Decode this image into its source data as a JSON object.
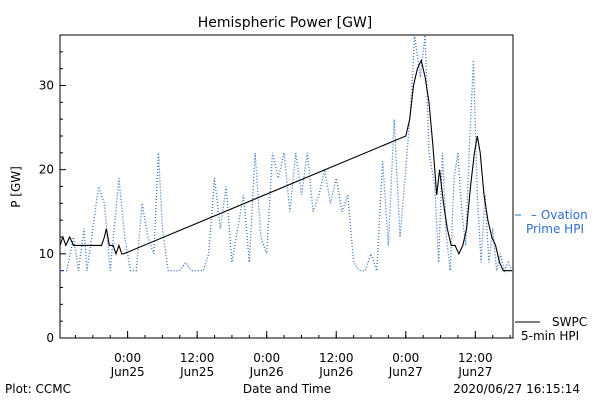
{
  "chart_data": {
    "type": "line",
    "title": "Hemispheric Power [GW]",
    "xlabel": "Date and Time",
    "ylabel": "P [GW]",
    "ylim": [
      0,
      36
    ],
    "xlim": [
      "2020-06-24T12:20",
      "2020-06-27T18:30"
    ],
    "yticks": [
      0,
      10,
      20,
      30
    ],
    "xticks": [
      {
        "time": "2020-06-25T00:00",
        "hour": "0:00",
        "day": "Jun25"
      },
      {
        "time": "2020-06-25T12:00",
        "hour": "12:00",
        "day": "Jun25"
      },
      {
        "time": "2020-06-26T00:00",
        "hour": "0:00",
        "day": "Jun26"
      },
      {
        "time": "2020-06-26T12:00",
        "hour": "12:00",
        "day": "Jun26"
      },
      {
        "time": "2020-06-27T00:00",
        "hour": "0:00",
        "day": "Jun27"
      },
      {
        "time": "2020-06-27T12:00",
        "hour": "12:00",
        "day": "Jun27"
      }
    ],
    "grid": false,
    "legend_position": "right",
    "series": [
      {
        "name": "SWPC 5-min HPI",
        "legend_lines": [
          "SWPC",
          "5-min HPI"
        ],
        "color": "#000000",
        "style": "solid",
        "points": [
          [
            "2020-06-24T12:20",
            11
          ],
          [
            "2020-06-24T12:50",
            12
          ],
          [
            "2020-06-24T13:20",
            11
          ],
          [
            "2020-06-24T14:00",
            12
          ],
          [
            "2020-06-24T14:40",
            11
          ],
          [
            "2020-06-24T15:30",
            11
          ],
          [
            "2020-06-24T16:30",
            11
          ],
          [
            "2020-06-24T17:30",
            11
          ],
          [
            "2020-06-24T18:30",
            11
          ],
          [
            "2020-06-24T19:30",
            11
          ],
          [
            "2020-06-24T20:00",
            12
          ],
          [
            "2020-06-24T20:20",
            13
          ],
          [
            "2020-06-24T20:50",
            11
          ],
          [
            "2020-06-24T21:30",
            11
          ],
          [
            "2020-06-24T22:00",
            10
          ],
          [
            "2020-06-24T22:30",
            11
          ],
          [
            "2020-06-24T23:00",
            10
          ],
          [
            "2020-06-24T23:20",
            10
          ],
          [
            "2020-06-27T00:00",
            24
          ],
          [
            "2020-06-27T00:40",
            26
          ],
          [
            "2020-06-27T01:20",
            30
          ],
          [
            "2020-06-27T02:00",
            32
          ],
          [
            "2020-06-27T02:40",
            33
          ],
          [
            "2020-06-27T03:20",
            31
          ],
          [
            "2020-06-27T04:00",
            28
          ],
          [
            "2020-06-27T04:40",
            23
          ],
          [
            "2020-06-27T05:20",
            17
          ],
          [
            "2020-06-27T05:50",
            20
          ],
          [
            "2020-06-27T06:30",
            16
          ],
          [
            "2020-06-27T07:10",
            13
          ],
          [
            "2020-06-27T07:50",
            11
          ],
          [
            "2020-06-27T08:30",
            11
          ],
          [
            "2020-06-27T09:10",
            10
          ],
          [
            "2020-06-27T09:50",
            11
          ],
          [
            "2020-06-27T10:30",
            13
          ],
          [
            "2020-06-27T11:10",
            18
          ],
          [
            "2020-06-27T11:50",
            22
          ],
          [
            "2020-06-27T12:20",
            24
          ],
          [
            "2020-06-27T12:50",
            22
          ],
          [
            "2020-06-27T13:30",
            17
          ],
          [
            "2020-06-27T14:10",
            14
          ],
          [
            "2020-06-27T14:50",
            12
          ],
          [
            "2020-06-27T15:30",
            11
          ],
          [
            "2020-06-27T16:10",
            9
          ],
          [
            "2020-06-27T16:50",
            8
          ],
          [
            "2020-06-27T17:30",
            8
          ],
          [
            "2020-06-27T18:20",
            8
          ]
        ]
      },
      {
        "name": "Ovation Prime HPI",
        "legend_lines": [
          "Ovation",
          "Prime HPI"
        ],
        "color": "#2f6fc9",
        "style": "dotted",
        "points": [
          [
            "2020-06-24T12:20",
            8
          ],
          [
            "2020-06-24T13:30",
            8
          ],
          [
            "2020-06-24T14:40",
            12
          ],
          [
            "2020-06-24T15:30",
            8
          ],
          [
            "2020-06-24T16:30",
            13
          ],
          [
            "2020-06-24T17:00",
            8
          ],
          [
            "2020-06-24T18:00",
            13
          ],
          [
            "2020-06-24T19:00",
            18
          ],
          [
            "2020-06-24T20:00",
            16
          ],
          [
            "2020-06-24T21:00",
            8
          ],
          [
            "2020-06-24T22:30",
            19
          ],
          [
            "2020-06-24T23:30",
            12
          ],
          [
            "2020-06-25T00:30",
            8
          ],
          [
            "2020-06-25T01:30",
            8
          ],
          [
            "2020-06-25T02:30",
            16
          ],
          [
            "2020-06-25T03:30",
            12
          ],
          [
            "2020-06-25T04:30",
            10
          ],
          [
            "2020-06-25T05:20",
            22
          ],
          [
            "2020-06-25T06:00",
            13
          ],
          [
            "2020-06-25T07:00",
            8
          ],
          [
            "2020-06-25T09:00",
            8
          ],
          [
            "2020-06-25T10:00",
            9
          ],
          [
            "2020-06-25T11:00",
            8
          ],
          [
            "2020-06-25T13:00",
            8
          ],
          [
            "2020-06-25T14:00",
            10
          ],
          [
            "2020-06-25T15:00",
            19
          ],
          [
            "2020-06-25T16:00",
            13
          ],
          [
            "2020-06-25T17:00",
            18
          ],
          [
            "2020-06-25T18:00",
            9
          ],
          [
            "2020-06-25T19:00",
            13
          ],
          [
            "2020-06-25T20:00",
            17
          ],
          [
            "2020-06-25T21:00",
            9
          ],
          [
            "2020-06-25T22:00",
            22
          ],
          [
            "2020-06-25T23:00",
            12
          ],
          [
            "2020-06-26T00:00",
            10
          ],
          [
            "2020-06-26T01:00",
            22
          ],
          [
            "2020-06-26T02:00",
            19
          ],
          [
            "2020-06-26T03:00",
            22
          ],
          [
            "2020-06-26T04:00",
            15
          ],
          [
            "2020-06-26T05:00",
            22
          ],
          [
            "2020-06-26T06:00",
            17
          ],
          [
            "2020-06-26T07:00",
            22
          ],
          [
            "2020-06-26T08:00",
            15
          ],
          [
            "2020-06-26T09:00",
            17
          ],
          [
            "2020-06-26T10:00",
            20
          ],
          [
            "2020-06-26T11:00",
            16
          ],
          [
            "2020-06-26T12:00",
            19
          ],
          [
            "2020-06-26T13:00",
            15
          ],
          [
            "2020-06-26T14:00",
            17
          ],
          [
            "2020-06-26T15:00",
            9
          ],
          [
            "2020-06-26T16:00",
            8
          ],
          [
            "2020-06-26T17:00",
            8
          ],
          [
            "2020-06-26T18:00",
            10
          ],
          [
            "2020-06-26T19:00",
            8
          ],
          [
            "2020-06-26T20:00",
            21
          ],
          [
            "2020-06-26T21:00",
            11
          ],
          [
            "2020-06-26T22:00",
            26
          ],
          [
            "2020-06-26T23:00",
            12
          ],
          [
            "2020-06-27T00:00",
            20
          ],
          [
            "2020-06-27T01:00",
            29
          ],
          [
            "2020-06-27T01:30",
            36
          ],
          [
            "2020-06-27T02:30",
            31
          ],
          [
            "2020-06-27T03:20",
            36
          ],
          [
            "2020-06-27T04:00",
            22
          ],
          [
            "2020-06-27T05:00",
            18
          ],
          [
            "2020-06-27T05:40",
            9
          ],
          [
            "2020-06-27T06:20",
            22
          ],
          [
            "2020-06-27T07:00",
            12
          ],
          [
            "2020-06-27T07:40",
            8
          ],
          [
            "2020-06-27T08:20",
            19
          ],
          [
            "2020-06-27T09:00",
            22
          ],
          [
            "2020-06-27T09:40",
            15
          ],
          [
            "2020-06-27T10:20",
            11
          ],
          [
            "2020-06-27T11:00",
            23
          ],
          [
            "2020-06-27T11:40",
            33
          ],
          [
            "2020-06-27T12:20",
            17
          ],
          [
            "2020-06-27T13:00",
            9
          ],
          [
            "2020-06-27T13:40",
            17
          ],
          [
            "2020-06-27T14:20",
            9
          ],
          [
            "2020-06-27T15:00",
            13
          ],
          [
            "2020-06-27T15:40",
            8
          ],
          [
            "2020-06-27T16:20",
            10
          ],
          [
            "2020-06-27T17:00",
            8
          ],
          [
            "2020-06-27T17:40",
            9
          ],
          [
            "2020-06-27T18:20",
            8
          ]
        ]
      }
    ]
  },
  "footer": {
    "left": "Plot: CCMC",
    "center": "Date and Time",
    "right": "2020/06/27 16:15:14"
  }
}
